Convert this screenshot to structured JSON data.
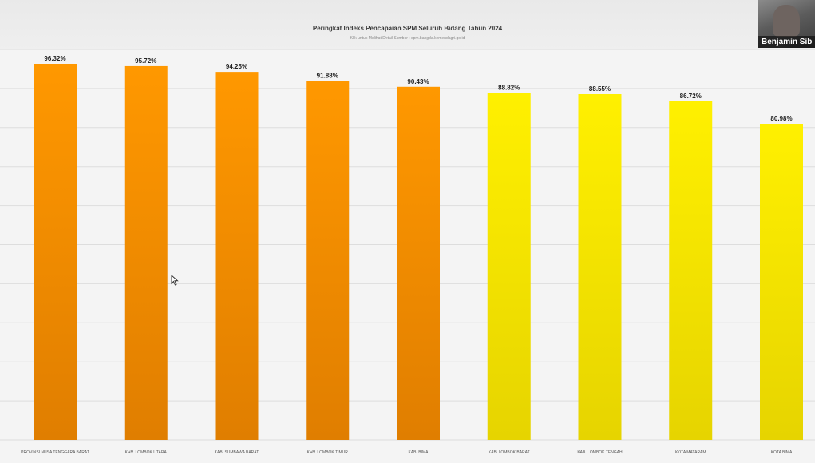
{
  "chart_data": {
    "type": "bar",
    "title": "Peringkat Indeks Pencapaian SPM Seluruh Bidang Tahun 2024",
    "subtitle": "Klik untuk Melihat Detail Sumber : spm.bangda.kemendagri.go.id",
    "categories": [
      "PROVINSI NUSA TENGGARA BARAT",
      "KAB. LOMBOK UTARA",
      "KAB. SUMBAWA BARAT",
      "KAB. LOMBOK TIMUR",
      "KAB. BIMA",
      "KAB. LOMBOK BARAT",
      "KAB. LOMBOK TENGAH",
      "KOTA MATARAM",
      "KOTA BIMA"
    ],
    "values": [
      96.32,
      95.72,
      94.25,
      91.88,
      90.43,
      88.82,
      88.55,
      86.72,
      80.98
    ],
    "data_labels": [
      "96.32%",
      "95.72%",
      "94.25%",
      "91.88%",
      "90.43%",
      "88.82%",
      "88.55%",
      "86.72%",
      "80.98%"
    ],
    "bar_colors": [
      "#ff9500",
      "#ff9500",
      "#ff9500",
      "#ff9500",
      "#ff9500",
      "#ffee00",
      "#ffee00",
      "#ffee00",
      "#ffee00"
    ],
    "ylim": [
      0,
      100
    ],
    "grid": true,
    "xlabel": "",
    "ylabel": ""
  },
  "video_overlay": {
    "name": "Benjamin Sib"
  },
  "colors": {
    "orange": "#ff9500",
    "yellow": "#ffee00",
    "grid": "#dddddd"
  }
}
